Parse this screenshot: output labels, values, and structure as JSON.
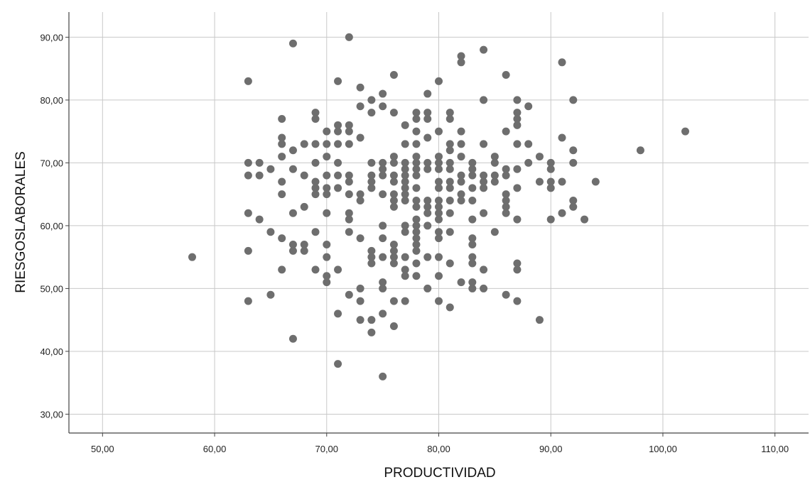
{
  "chart_data": {
    "type": "scatter",
    "xlabel": "PRODUCTIVIDAD",
    "ylabel": "RIESGOSLABORALES",
    "xlim": [
      47,
      113
    ],
    "ylim": [
      27,
      94
    ],
    "x_ticks": [
      50,
      60,
      70,
      80,
      90,
      100,
      110
    ],
    "y_ticks": [
      30,
      40,
      50,
      60,
      70,
      80,
      90
    ],
    "x_tick_labels": [
      "50,00",
      "60,00",
      "70,00",
      "80,00",
      "90,00",
      "100,00",
      "110,00"
    ],
    "y_tick_labels": [
      "30,00",
      "40,00",
      "50,00",
      "60,00",
      "70,00",
      "80,00",
      "90,00"
    ],
    "grid": true,
    "marker_color": "#6e6e6e",
    "points": [
      [
        58,
        55
      ],
      [
        63,
        83
      ],
      [
        63,
        70
      ],
      [
        63,
        68
      ],
      [
        63,
        62
      ],
      [
        63,
        56
      ],
      [
        63,
        48
      ],
      [
        64,
        70
      ],
      [
        64,
        68
      ],
      [
        64,
        61
      ],
      [
        65,
        69
      ],
      [
        65,
        59
      ],
      [
        65,
        49
      ],
      [
        66,
        77
      ],
      [
        66,
        74
      ],
      [
        66,
        73
      ],
      [
        66,
        71
      ],
      [
        66,
        67
      ],
      [
        66,
        65
      ],
      [
        66,
        58
      ],
      [
        66,
        53
      ],
      [
        67,
        89
      ],
      [
        67,
        72
      ],
      [
        67,
        69
      ],
      [
        67,
        62
      ],
      [
        67,
        57
      ],
      [
        67,
        56
      ],
      [
        67,
        42
      ],
      [
        68,
        73
      ],
      [
        68,
        68
      ],
      [
        68,
        63
      ],
      [
        68,
        57
      ],
      [
        68,
        56
      ],
      [
        69,
        78
      ],
      [
        69,
        77
      ],
      [
        69,
        73
      ],
      [
        69,
        70
      ],
      [
        69,
        67
      ],
      [
        69,
        66
      ],
      [
        69,
        65
      ],
      [
        69,
        59
      ],
      [
        69,
        53
      ],
      [
        70,
        75
      ],
      [
        70,
        73
      ],
      [
        70,
        71
      ],
      [
        70,
        68
      ],
      [
        70,
        66
      ],
      [
        70,
        65
      ],
      [
        70,
        62
      ],
      [
        70,
        57
      ],
      [
        70,
        55
      ],
      [
        70,
        52
      ],
      [
        70,
        51
      ],
      [
        71,
        83
      ],
      [
        71,
        76
      ],
      [
        71,
        75
      ],
      [
        71,
        73
      ],
      [
        71,
        70
      ],
      [
        71,
        68
      ],
      [
        71,
        66
      ],
      [
        71,
        53
      ],
      [
        71,
        46
      ],
      [
        71,
        38
      ],
      [
        72,
        90
      ],
      [
        72,
        76
      ],
      [
        72,
        75
      ],
      [
        72,
        73
      ],
      [
        72,
        68
      ],
      [
        72,
        67
      ],
      [
        72,
        65
      ],
      [
        72,
        62
      ],
      [
        72,
        61
      ],
      [
        72,
        59
      ],
      [
        72,
        49
      ],
      [
        73,
        82
      ],
      [
        73,
        79
      ],
      [
        73,
        74
      ],
      [
        73,
        65
      ],
      [
        73,
        64
      ],
      [
        73,
        58
      ],
      [
        73,
        50
      ],
      [
        73,
        48
      ],
      [
        73,
        45
      ],
      [
        74,
        80
      ],
      [
        74,
        78
      ],
      [
        74,
        70
      ],
      [
        74,
        68
      ],
      [
        74,
        67
      ],
      [
        74,
        66
      ],
      [
        74,
        56
      ],
      [
        74,
        55
      ],
      [
        74,
        54
      ],
      [
        74,
        45
      ],
      [
        74,
        43
      ],
      [
        75,
        81
      ],
      [
        75,
        79
      ],
      [
        75,
        70
      ],
      [
        75,
        69
      ],
      [
        75,
        68
      ],
      [
        75,
        65
      ],
      [
        75,
        60
      ],
      [
        75,
        58
      ],
      [
        75,
        55
      ],
      [
        75,
        51
      ],
      [
        75,
        50
      ],
      [
        75,
        46
      ],
      [
        75,
        36
      ],
      [
        76,
        84
      ],
      [
        76,
        78
      ],
      [
        76,
        71
      ],
      [
        76,
        70
      ],
      [
        76,
        68
      ],
      [
        76,
        67
      ],
      [
        76,
        65
      ],
      [
        76,
        64
      ],
      [
        76,
        63
      ],
      [
        76,
        57
      ],
      [
        76,
        56
      ],
      [
        76,
        55
      ],
      [
        76,
        54
      ],
      [
        76,
        48
      ],
      [
        76,
        44
      ],
      [
        77,
        76
      ],
      [
        77,
        73
      ],
      [
        77,
        70
      ],
      [
        77,
        69
      ],
      [
        77,
        68
      ],
      [
        77,
        67
      ],
      [
        77,
        66
      ],
      [
        77,
        65
      ],
      [
        77,
        64
      ],
      [
        77,
        60
      ],
      [
        77,
        59
      ],
      [
        77,
        55
      ],
      [
        77,
        53
      ],
      [
        77,
        52
      ],
      [
        77,
        48
      ],
      [
        78,
        78
      ],
      [
        78,
        77
      ],
      [
        78,
        75
      ],
      [
        78,
        73
      ],
      [
        78,
        71
      ],
      [
        78,
        70
      ],
      [
        78,
        69
      ],
      [
        78,
        68
      ],
      [
        78,
        66
      ],
      [
        78,
        64
      ],
      [
        78,
        63
      ],
      [
        78,
        61
      ],
      [
        78,
        60
      ],
      [
        78,
        59
      ],
      [
        78,
        58
      ],
      [
        78,
        57
      ],
      [
        78,
        56
      ],
      [
        78,
        54
      ],
      [
        78,
        52
      ],
      [
        79,
        81
      ],
      [
        79,
        78
      ],
      [
        79,
        77
      ],
      [
        79,
        74
      ],
      [
        79,
        70
      ],
      [
        79,
        69
      ],
      [
        79,
        64
      ],
      [
        79,
        63
      ],
      [
        79,
        62
      ],
      [
        79,
        60
      ],
      [
        79,
        55
      ],
      [
        79,
        50
      ],
      [
        80,
        83
      ],
      [
        80,
        75
      ],
      [
        80,
        71
      ],
      [
        80,
        70
      ],
      [
        80,
        69
      ],
      [
        80,
        67
      ],
      [
        80,
        66
      ],
      [
        80,
        64
      ],
      [
        80,
        63
      ],
      [
        80,
        62
      ],
      [
        80,
        61
      ],
      [
        80,
        59
      ],
      [
        80,
        58
      ],
      [
        80,
        55
      ],
      [
        80,
        52
      ],
      [
        80,
        48
      ],
      [
        81,
        78
      ],
      [
        81,
        77
      ],
      [
        81,
        73
      ],
      [
        81,
        72
      ],
      [
        81,
        70
      ],
      [
        81,
        69
      ],
      [
        81,
        67
      ],
      [
        81,
        66
      ],
      [
        81,
        64
      ],
      [
        81,
        62
      ],
      [
        81,
        59
      ],
      [
        81,
        54
      ],
      [
        81,
        47
      ],
      [
        82,
        87
      ],
      [
        82,
        86
      ],
      [
        82,
        75
      ],
      [
        82,
        73
      ],
      [
        82,
        71
      ],
      [
        82,
        68
      ],
      [
        82,
        67
      ],
      [
        82,
        65
      ],
      [
        82,
        64
      ],
      [
        82,
        51
      ],
      [
        83,
        70
      ],
      [
        83,
        69
      ],
      [
        83,
        68
      ],
      [
        83,
        66
      ],
      [
        83,
        64
      ],
      [
        83,
        61
      ],
      [
        83,
        58
      ],
      [
        83,
        57
      ],
      [
        83,
        55
      ],
      [
        83,
        54
      ],
      [
        83,
        51
      ],
      [
        83,
        50
      ],
      [
        84,
        88
      ],
      [
        84,
        80
      ],
      [
        84,
        73
      ],
      [
        84,
        68
      ],
      [
        84,
        67
      ],
      [
        84,
        66
      ],
      [
        84,
        62
      ],
      [
        84,
        53
      ],
      [
        84,
        50
      ],
      [
        85,
        71
      ],
      [
        85,
        70
      ],
      [
        85,
        68
      ],
      [
        85,
        67
      ],
      [
        85,
        59
      ],
      [
        86,
        84
      ],
      [
        86,
        75
      ],
      [
        86,
        69
      ],
      [
        86,
        68
      ],
      [
        86,
        65
      ],
      [
        86,
        64
      ],
      [
        86,
        63
      ],
      [
        86,
        62
      ],
      [
        86,
        49
      ],
      [
        87,
        80
      ],
      [
        87,
        78
      ],
      [
        87,
        77
      ],
      [
        87,
        76
      ],
      [
        87,
        73
      ],
      [
        87,
        69
      ],
      [
        87,
        66
      ],
      [
        87,
        61
      ],
      [
        87,
        54
      ],
      [
        87,
        53
      ],
      [
        87,
        48
      ],
      [
        88,
        79
      ],
      [
        88,
        73
      ],
      [
        88,
        70
      ],
      [
        89,
        71
      ],
      [
        89,
        67
      ],
      [
        89,
        45
      ],
      [
        90,
        70
      ],
      [
        90,
        69
      ],
      [
        90,
        67
      ],
      [
        90,
        66
      ],
      [
        90,
        61
      ],
      [
        91,
        86
      ],
      [
        91,
        74
      ],
      [
        91,
        67
      ],
      [
        91,
        62
      ],
      [
        92,
        80
      ],
      [
        92,
        72
      ],
      [
        92,
        70
      ],
      [
        92,
        64
      ],
      [
        92,
        63
      ],
      [
        93,
        61
      ],
      [
        94,
        67
      ],
      [
        98,
        72
      ],
      [
        102,
        75
      ]
    ]
  }
}
